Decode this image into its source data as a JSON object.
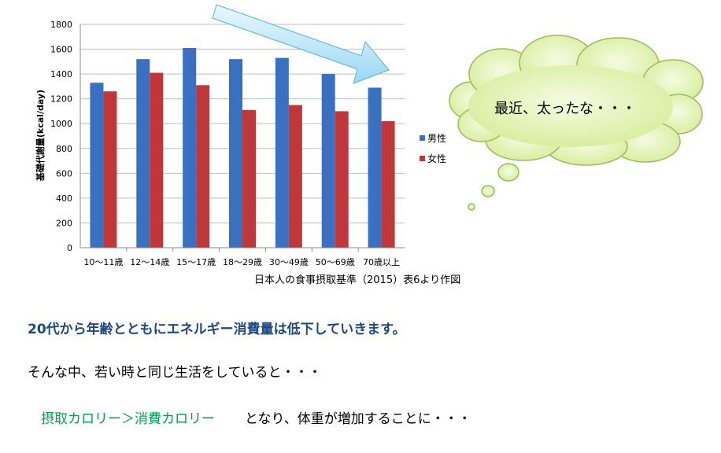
{
  "chart_data": {
    "type": "bar",
    "categories": [
      "10～11歳",
      "12～14歳",
      "15～17歳",
      "18～29歳",
      "30～49歳",
      "50～69歳",
      "70歳以上"
    ],
    "series": [
      {
        "name": "男性",
        "values": [
          1330,
          1520,
          1610,
          1520,
          1530,
          1400,
          1290
        ],
        "color": "#3a70c2"
      },
      {
        "name": "女性",
        "values": [
          1260,
          1410,
          1310,
          1110,
          1150,
          1100,
          1020
        ],
        "color": "#c0373a"
      }
    ],
    "ylabel": "基礎代謝量(kcal/day)",
    "ylim": [
      0,
      1800
    ],
    "yticks": [
      0,
      200,
      400,
      600,
      800,
      1000,
      1200,
      1400,
      1600,
      1800
    ],
    "grid": true,
    "legend_position": "right"
  },
  "source_note": "日本人の食事摂取基準（2015）表6より作図",
  "bubble_text": "最近、太ったな・・・",
  "line1": "20代から年齢とともにエネルギー消費量は低下していきます。",
  "line2": "そんな中、若い時と同じ生活をしていると・・・",
  "line3_green": "摂取カロリー＞消費カロリー",
  "line3_rest": "となり、体重が増加することに・・・"
}
